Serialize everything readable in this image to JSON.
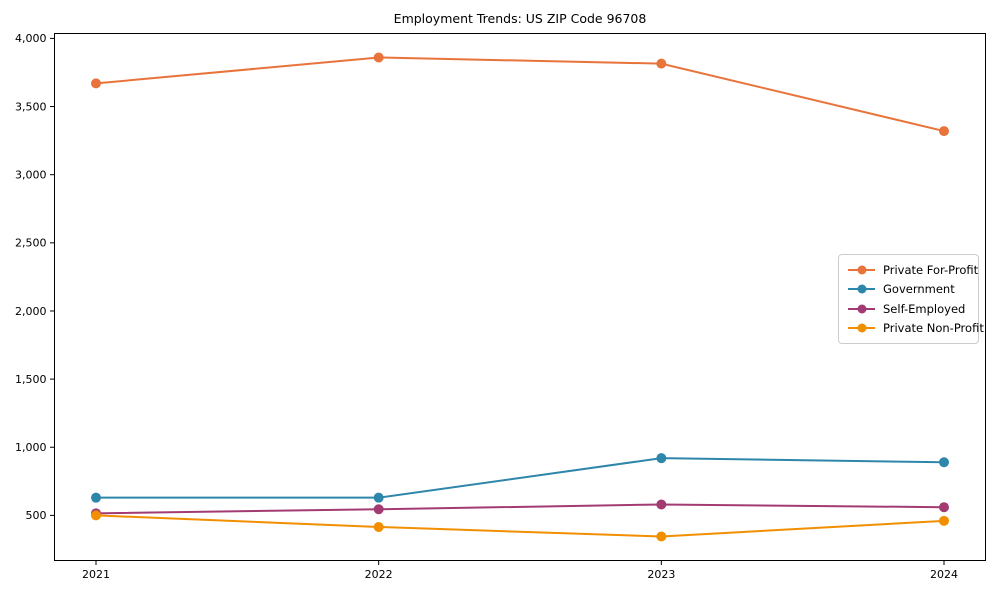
{
  "chart_data": {
    "type": "line",
    "title": "Employment Trends: US ZIP Code 96708",
    "xlabel": "",
    "ylabel": "",
    "categories": [
      "2021",
      "2022",
      "2023",
      "2024"
    ],
    "x": [
      2021,
      2022,
      2023,
      2024
    ],
    "series": [
      {
        "name": "Private For-Profit",
        "color": "#E8743B",
        "values": [
          3670,
          3860,
          3815,
          3320
        ]
      },
      {
        "name": "Government",
        "color": "#2E86AB",
        "values": [
          630,
          630,
          920,
          890
        ]
      },
      {
        "name": "Self-Employed",
        "color": "#A23B72",
        "values": [
          515,
          545,
          580,
          560
        ]
      },
      {
        "name": "Private Non-Profit",
        "color": "#F18F01",
        "values": [
          500,
          415,
          345,
          460
        ]
      }
    ],
    "yticks": [
      500,
      1000,
      1500,
      2000,
      2500,
      3000,
      3500,
      4000
    ],
    "ytick_labels": [
      "500",
      "1,000",
      "1,500",
      "2,000",
      "2,500",
      "3,000",
      "3,500",
      "4,000"
    ],
    "ylim": [
      169,
      4036
    ],
    "grid": false,
    "legend_position": "center-right",
    "marker": "circle",
    "axis_color": "#000000",
    "background_color": "#ffffff"
  }
}
